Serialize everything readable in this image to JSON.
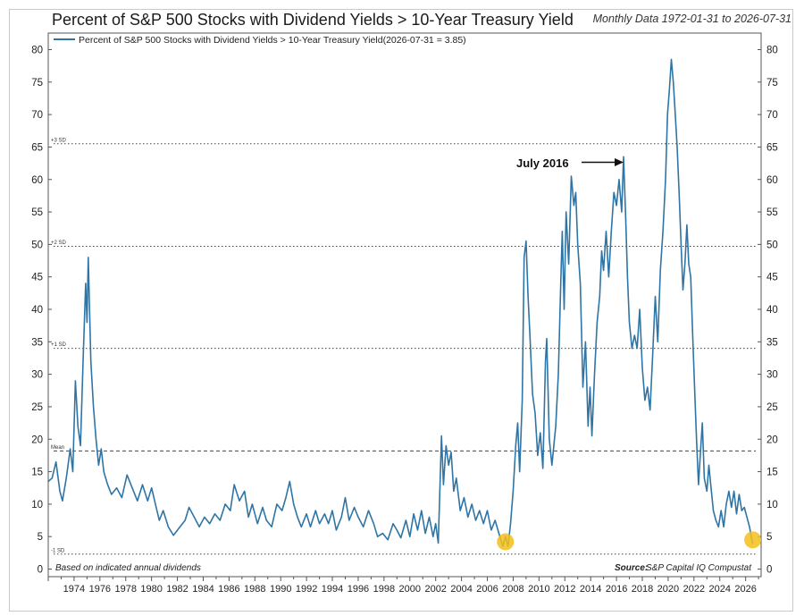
{
  "header": {
    "title": "Percent of S&P 500 Stocks with Dividend Yields > 10-Year Treasury Yield",
    "range_note": "Monthly Data 1972-01-31 to 2026-07-31"
  },
  "legend": {
    "label": "Percent of S&P 500 Stocks with Dividend Yields > 10-Year Treasury Yield(2026-07-31 = 3.85)"
  },
  "footer": {
    "basis": "Based on indicated annual dividends",
    "source_label": "Source:",
    "source": "S&P Capital IQ Compustat"
  },
  "annotation": {
    "text": "July 2016"
  },
  "colors": {
    "line": "#2e75a6",
    "highlight": "#f5c01a",
    "ref_line": "#444444"
  },
  "chart_data": {
    "type": "line",
    "title": "Percent of S&P 500 Stocks with Dividend Yields > 10-Year Treasury Yield",
    "subtitle": "Monthly Data 1972-01-31 to 2026-07-31",
    "ylim": [
      0,
      80
    ],
    "xlim": [
      1972.0,
      2027.2
    ],
    "y_ticks": [
      0,
      5,
      10,
      15,
      20,
      25,
      30,
      35,
      40,
      45,
      50,
      55,
      60,
      65,
      70,
      75,
      80
    ],
    "x_ticks": [
      "1974",
      "1976",
      "1978",
      "1980",
      "1982",
      "1984",
      "1986",
      "1988",
      "1990",
      "1992",
      "1994",
      "1996",
      "1998",
      "2000",
      "2002",
      "2004",
      "2006",
      "2008",
      "2010",
      "2012",
      "2014",
      "2016",
      "2018",
      "2020",
      "2022",
      "2024",
      "2026"
    ],
    "y_axes": "left and right",
    "grid": false,
    "legend_position": "top-left",
    "reference_lines": [
      {
        "label": "+3 SD",
        "value": 65.5,
        "style": "dotted"
      },
      {
        "label": "+2 SD",
        "value": 49.7,
        "style": "dotted"
      },
      {
        "label": "+1 SD",
        "value": 34,
        "style": "dotted"
      },
      {
        "label": "Mean",
        "value": 18.2,
        "style": "dashed"
      },
      {
        "label": "-1 SD",
        "value": 2.3,
        "style": "dotted"
      }
    ],
    "annotations": [
      {
        "text": "July 2016",
        "x": 2016.55,
        "y": 63.5
      }
    ],
    "highlights": [
      {
        "x": 2007.4,
        "y": 4.2
      },
      {
        "x": 2026.55,
        "y": 4.5
      }
    ],
    "series": [
      {
        "name": "Percent of S&P 500 Stocks with Dividend Yields > 10-Year Treasury Yield",
        "last_value": 3.85,
        "points": [
          [
            1972.0,
            13.5
          ],
          [
            1972.3,
            14
          ],
          [
            1972.6,
            16.5
          ],
          [
            1972.9,
            12
          ],
          [
            1973.1,
            10.5
          ],
          [
            1973.4,
            14
          ],
          [
            1973.7,
            18.5
          ],
          [
            1973.9,
            15
          ],
          [
            1974.1,
            29
          ],
          [
            1974.3,
            22
          ],
          [
            1974.5,
            19
          ],
          [
            1974.7,
            32
          ],
          [
            1974.9,
            44
          ],
          [
            1975.0,
            38
          ],
          [
            1975.1,
            48
          ],
          [
            1975.3,
            32
          ],
          [
            1975.5,
            25
          ],
          [
            1975.7,
            20
          ],
          [
            1975.9,
            16
          ],
          [
            1976.1,
            18.5
          ],
          [
            1976.3,
            15
          ],
          [
            1976.6,
            13
          ],
          [
            1976.9,
            11.5
          ],
          [
            1977.3,
            12.5
          ],
          [
            1977.7,
            11
          ],
          [
            1978.1,
            14.5
          ],
          [
            1978.5,
            12.5
          ],
          [
            1978.9,
            10.5
          ],
          [
            1979.3,
            13
          ],
          [
            1979.7,
            10.5
          ],
          [
            1980.0,
            12.5
          ],
          [
            1980.3,
            10
          ],
          [
            1980.6,
            7.5
          ],
          [
            1980.9,
            9
          ],
          [
            1981.3,
            6.5
          ],
          [
            1981.7,
            5.2
          ],
          [
            1982.2,
            6.5
          ],
          [
            1982.6,
            7.5
          ],
          [
            1982.9,
            9.5
          ],
          [
            1983.3,
            8
          ],
          [
            1983.7,
            6.5
          ],
          [
            1984.1,
            8
          ],
          [
            1984.5,
            7
          ],
          [
            1984.9,
            8.5
          ],
          [
            1985.3,
            7.5
          ],
          [
            1985.7,
            10
          ],
          [
            1986.1,
            9
          ],
          [
            1986.4,
            13
          ],
          [
            1986.8,
            10.5
          ],
          [
            1987.2,
            12
          ],
          [
            1987.5,
            8
          ],
          [
            1987.8,
            10
          ],
          [
            1988.2,
            7
          ],
          [
            1988.6,
            9.5
          ],
          [
            1988.9,
            7.5
          ],
          [
            1989.3,
            6.5
          ],
          [
            1989.7,
            10
          ],
          [
            1990.1,
            9
          ],
          [
            1990.4,
            11
          ],
          [
            1990.7,
            13.5
          ],
          [
            1991.0,
            10
          ],
          [
            1991.3,
            8
          ],
          [
            1991.6,
            6.5
          ],
          [
            1992.0,
            8.5
          ],
          [
            1992.3,
            6.5
          ],
          [
            1992.7,
            9
          ],
          [
            1993.0,
            7
          ],
          [
            1993.4,
            8.5
          ],
          [
            1993.7,
            7
          ],
          [
            1994.0,
            9
          ],
          [
            1994.3,
            6
          ],
          [
            1994.7,
            8
          ],
          [
            1995.0,
            11
          ],
          [
            1995.3,
            7.5
          ],
          [
            1995.7,
            9.5
          ],
          [
            1996.0,
            8
          ],
          [
            1996.4,
            6.5
          ],
          [
            1996.8,
            9
          ],
          [
            1997.2,
            7
          ],
          [
            1997.5,
            5
          ],
          [
            1997.9,
            5.5
          ],
          [
            1998.3,
            4.5
          ],
          [
            1998.7,
            7
          ],
          [
            1999.0,
            6
          ],
          [
            1999.3,
            4.8
          ],
          [
            1999.7,
            7.5
          ],
          [
            2000.0,
            5
          ],
          [
            2000.3,
            8.5
          ],
          [
            2000.6,
            6
          ],
          [
            2000.9,
            9
          ],
          [
            2001.2,
            5.5
          ],
          [
            2001.5,
            8
          ],
          [
            2001.8,
            5
          ],
          [
            2002.0,
            7
          ],
          [
            2002.2,
            4
          ],
          [
            2002.45,
            20.5
          ],
          [
            2002.6,
            13
          ],
          [
            2002.8,
            19
          ],
          [
            2003.0,
            16
          ],
          [
            2003.2,
            18
          ],
          [
            2003.4,
            12
          ],
          [
            2003.6,
            14
          ],
          [
            2003.9,
            9
          ],
          [
            2004.2,
            11
          ],
          [
            2004.5,
            8
          ],
          [
            2004.8,
            10
          ],
          [
            2005.1,
            7.5
          ],
          [
            2005.4,
            9
          ],
          [
            2005.7,
            7
          ],
          [
            2006.0,
            9
          ],
          [
            2006.3,
            6
          ],
          [
            2006.6,
            7.5
          ],
          [
            2006.9,
            5.5
          ],
          [
            2007.2,
            3.5
          ],
          [
            2007.4,
            5
          ],
          [
            2007.6,
            3.5
          ],
          [
            2007.8,
            7
          ],
          [
            2008.0,
            12
          ],
          [
            2008.2,
            19
          ],
          [
            2008.35,
            22.5
          ],
          [
            2008.5,
            15
          ],
          [
            2008.7,
            26
          ],
          [
            2008.85,
            48
          ],
          [
            2009.0,
            50.5
          ],
          [
            2009.15,
            42
          ],
          [
            2009.3,
            36
          ],
          [
            2009.5,
            27
          ],
          [
            2009.7,
            24
          ],
          [
            2009.9,
            17.5
          ],
          [
            2010.1,
            21
          ],
          [
            2010.3,
            15.5
          ],
          [
            2010.5,
            32
          ],
          [
            2010.6,
            35.5
          ],
          [
            2010.8,
            20
          ],
          [
            2011.0,
            16
          ],
          [
            2011.3,
            22
          ],
          [
            2011.5,
            30
          ],
          [
            2011.7,
            45
          ],
          [
            2011.8,
            52
          ],
          [
            2011.95,
            40
          ],
          [
            2012.1,
            55
          ],
          [
            2012.3,
            47
          ],
          [
            2012.5,
            60.5
          ],
          [
            2012.7,
            56
          ],
          [
            2012.85,
            58
          ],
          [
            2013.0,
            50
          ],
          [
            2013.2,
            44
          ],
          [
            2013.4,
            28
          ],
          [
            2013.6,
            35
          ],
          [
            2013.8,
            22
          ],
          [
            2013.95,
            28
          ],
          [
            2014.1,
            20.5
          ],
          [
            2014.3,
            30
          ],
          [
            2014.5,
            38
          ],
          [
            2014.7,
            42
          ],
          [
            2014.85,
            49
          ],
          [
            2015.0,
            46
          ],
          [
            2015.2,
            52
          ],
          [
            2015.4,
            45
          ],
          [
            2015.6,
            52
          ],
          [
            2015.8,
            58
          ],
          [
            2016.0,
            56
          ],
          [
            2016.2,
            60
          ],
          [
            2016.4,
            55
          ],
          [
            2016.55,
            63.5
          ],
          [
            2016.7,
            55
          ],
          [
            2016.85,
            45
          ],
          [
            2017.0,
            38
          ],
          [
            2017.2,
            34
          ],
          [
            2017.4,
            36
          ],
          [
            2017.6,
            34
          ],
          [
            2017.8,
            40
          ],
          [
            2018.0,
            31
          ],
          [
            2018.2,
            26
          ],
          [
            2018.4,
            28
          ],
          [
            2018.6,
            24.5
          ],
          [
            2018.8,
            33
          ],
          [
            2019.0,
            42
          ],
          [
            2019.2,
            35
          ],
          [
            2019.4,
            46
          ],
          [
            2019.6,
            52
          ],
          [
            2019.8,
            60
          ],
          [
            2019.95,
            70
          ],
          [
            2020.1,
            74
          ],
          [
            2020.25,
            78.5
          ],
          [
            2020.4,
            75
          ],
          [
            2020.55,
            70
          ],
          [
            2020.7,
            65
          ],
          [
            2020.85,
            58
          ],
          [
            2021.0,
            50
          ],
          [
            2021.15,
            43
          ],
          [
            2021.3,
            47
          ],
          [
            2021.45,
            53
          ],
          [
            2021.6,
            47
          ],
          [
            2021.75,
            45
          ],
          [
            2021.9,
            36
          ],
          [
            2022.05,
            28
          ],
          [
            2022.2,
            20
          ],
          [
            2022.35,
            13
          ],
          [
            2022.5,
            18
          ],
          [
            2022.65,
            22.5
          ],
          [
            2022.8,
            14
          ],
          [
            2023.0,
            12
          ],
          [
            2023.15,
            16
          ],
          [
            2023.3,
            13
          ],
          [
            2023.5,
            9
          ],
          [
            2023.7,
            7.5
          ],
          [
            2023.9,
            6.5
          ],
          [
            2024.1,
            9
          ],
          [
            2024.3,
            6.5
          ],
          [
            2024.5,
            10
          ],
          [
            2024.7,
            12
          ],
          [
            2024.9,
            9.5
          ],
          [
            2025.1,
            12
          ],
          [
            2025.3,
            8.5
          ],
          [
            2025.5,
            11.5
          ],
          [
            2025.7,
            9
          ],
          [
            2025.9,
            9.5
          ],
          [
            2026.1,
            8
          ],
          [
            2026.3,
            6.5
          ],
          [
            2026.55,
            3.85
          ]
        ]
      }
    ]
  }
}
